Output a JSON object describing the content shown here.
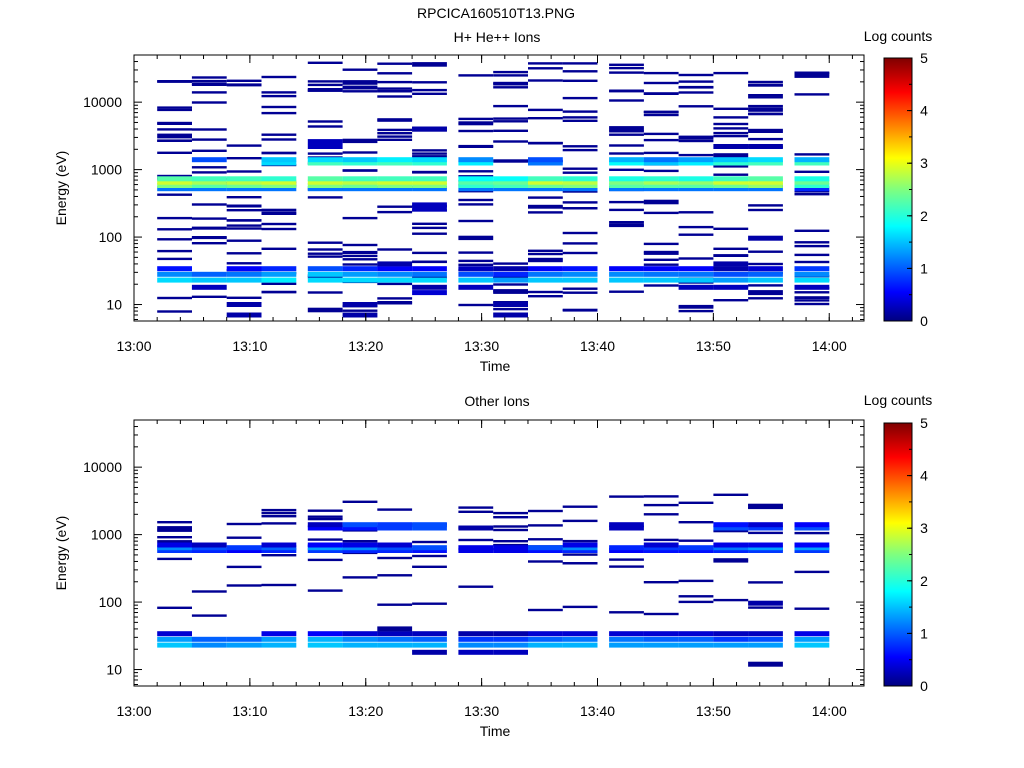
{
  "figure_title": "RPCICA160510T13.PNG",
  "chart_data": [
    {
      "type": "heatmap",
      "title": "H+ He++ Ions",
      "xlabel": "Time",
      "ylabel": "Energy (eV)",
      "x_ticks": [
        "13:00",
        "13:10",
        "13:20",
        "13:30",
        "13:40",
        "13:50",
        "14:00"
      ],
      "x_range": [
        "13:00",
        "14:03"
      ],
      "y_scale": "log",
      "y_range": [
        5.7,
        50000
      ],
      "y_ticks": [
        "10",
        "100",
        "1000",
        "10000"
      ],
      "colorbar": {
        "label": "Log counts",
        "range": [
          0,
          5
        ],
        "ticks": [
          "0",
          "1",
          "2",
          "3",
          "4",
          "5"
        ]
      },
      "time_bins": [
        "13:02",
        "13:05",
        "13:08",
        "13:11",
        "13:15",
        "13:18",
        "13:21",
        "13:24",
        "13:28",
        "13:31",
        "13:34",
        "13:37",
        "13:41",
        "13:44",
        "13:47",
        "13:50",
        "13:53",
        "13:57"
      ],
      "bands": [
        {
          "energy_eV": 520,
          "levels": [
            1.2,
            1.2,
            1.2,
            1.2,
            1.2,
            1.2,
            1.2,
            1.2,
            1.2,
            1.2,
            1.2,
            1.2,
            1.2,
            1.2,
            1.2,
            1.2,
            1.2,
            0.8
          ]
        },
        {
          "energy_eV": 580,
          "levels": [
            2.5,
            2.3,
            2.4,
            2.5,
            2.5,
            2.4,
            2.5,
            2.5,
            2.1,
            2.2,
            2.4,
            2.5,
            2.3,
            2.3,
            2.3,
            2.4,
            2.6,
            2.1
          ]
        },
        {
          "energy_eV": 650,
          "levels": [
            2.9,
            2.7,
            2.8,
            2.9,
            2.9,
            2.8,
            2.9,
            2.9,
            2.3,
            2.4,
            2.9,
            2.8,
            2.5,
            2.7,
            2.6,
            2.9,
            2.9,
            2.4
          ]
        },
        {
          "energy_eV": 730,
          "levels": [
            2.3,
            2.2,
            2.2,
            2.1,
            2.3,
            2.2,
            2.2,
            2.2,
            1.9,
            1.9,
            2.2,
            2.1,
            2.0,
            2.1,
            2.0,
            2.2,
            2.3,
            2.0
          ]
        },
        {
          "energy_eV": 1250,
          "levels": [
            0,
            0,
            0,
            1.7,
            2.2,
            2.1,
            2.2,
            2.1,
            1.8,
            0,
            1.2,
            0,
            1.9,
            1.6,
            1.8,
            2.1,
            2.2,
            2.2
          ]
        },
        {
          "energy_eV": 1400,
          "levels": [
            0,
            1.0,
            0,
            1.6,
            1.7,
            1.6,
            1.8,
            1.7,
            1.3,
            0,
            1.0,
            0,
            1.5,
            1.2,
            1.4,
            1.6,
            1.7,
            1.5
          ]
        },
        {
          "energy_eV": 23,
          "levels": [
            1.7,
            1.6,
            1.6,
            1.8,
            1.7,
            1.7,
            1.7,
            1.7,
            1.6,
            1.4,
            1.6,
            1.6,
            1.6,
            1.6,
            1.6,
            1.4,
            1.6,
            1.7
          ]
        },
        {
          "energy_eV": 28,
          "levels": [
            1.3,
            1.1,
            1.2,
            1.4,
            1.6,
            1.4,
            1.3,
            1.2,
            1.0,
            0.8,
            1.2,
            1.3,
            1.3,
            1.2,
            1.2,
            1.0,
            1.1,
            1.3
          ]
        },
        {
          "energy_eV": 34,
          "levels": [
            0.7,
            0,
            0.6,
            0.8,
            1.0,
            0.8,
            0.6,
            0.6,
            0.3,
            0.2,
            0.6,
            0.7,
            0.6,
            0.6,
            0.6,
            0.2,
            0.4,
            0.9
          ]
        },
        {
          "energy_eV": 40,
          "levels": [
            0,
            0,
            0,
            0,
            0,
            0,
            0.2,
            0,
            0,
            0,
            0,
            0,
            0,
            0,
            0,
            0.2,
            0,
            0
          ]
        },
        {
          "energy_eV": 18,
          "levels": [
            0,
            0.3,
            0,
            0,
            0,
            0,
            0,
            0.2,
            0.3,
            0,
            0,
            0,
            0,
            0,
            0.3,
            0.3,
            0,
            0.3
          ]
        },
        {
          "energy_eV": 15,
          "levels": [
            0,
            0,
            0,
            0,
            0,
            0,
            0,
            0.4,
            0,
            0,
            0,
            0,
            0,
            0,
            0,
            0,
            0.1,
            0
          ]
        },
        {
          "energy_eV": 10,
          "levels": [
            0,
            0,
            0.2,
            0,
            0,
            0.2,
            0,
            0,
            0,
            0.2,
            0,
            0,
            0,
            0,
            0,
            0,
            0,
            0
          ]
        },
        {
          "energy_eV": 7,
          "levels": [
            0,
            0,
            0.2,
            0,
            0,
            0.2,
            0,
            0,
            0,
            0.2,
            0,
            0,
            0,
            0,
            0,
            0,
            0,
            0
          ]
        },
        {
          "energy_eV": 2200,
          "levels": [
            0,
            0,
            0,
            0,
            0.3,
            0,
            0,
            0,
            0,
            0,
            0,
            0,
            0,
            0,
            0,
            0.2,
            0.2,
            0
          ]
        },
        {
          "energy_eV": 2600,
          "levels": [
            0,
            0,
            0,
            0,
            0.3,
            0,
            0,
            0,
            0,
            0,
            0,
            0,
            0,
            0,
            0,
            0,
            0,
            0
          ]
        },
        {
          "energy_eV": 4000,
          "levels": [
            0,
            0,
            0,
            0,
            0,
            0,
            0,
            0.2,
            0,
            0,
            0,
            0,
            0,
            0,
            0,
            0,
            0,
            0
          ]
        },
        {
          "energy_eV": 300,
          "levels": [
            0,
            0,
            0,
            0,
            0,
            0,
            0,
            0.3,
            0,
            0,
            0,
            0,
            0,
            0,
            0,
            0,
            0,
            0
          ]
        },
        {
          "energy_eV": 260,
          "levels": [
            0,
            0,
            0,
            0,
            0,
            0,
            0,
            0.3,
            0,
            0,
            0,
            0,
            0,
            0,
            0,
            0,
            0,
            0
          ]
        },
        {
          "energy_eV": 96,
          "levels": [
            0,
            0,
            0,
            0,
            0,
            0,
            0,
            0,
            0,
            0,
            0,
            0,
            0,
            0,
            0,
            0,
            0.2,
            0
          ]
        }
      ],
      "sparse_level": 0.1
    },
    {
      "type": "heatmap",
      "title": "Other Ions",
      "xlabel": "Time",
      "ylabel": "Energy (eV)",
      "x_ticks": [
        "13:00",
        "13:10",
        "13:20",
        "13:30",
        "13:40",
        "13:50",
        "14:00"
      ],
      "x_range": [
        "13:00",
        "14:03"
      ],
      "y_scale": "log",
      "y_range": [
        5.7,
        50000
      ],
      "y_ticks": [
        "10",
        "100",
        "1000",
        "10000"
      ],
      "colorbar": {
        "label": "Log counts",
        "range": [
          0,
          5
        ],
        "ticks": [
          "0",
          "1",
          "2",
          "3",
          "4",
          "5"
        ]
      },
      "time_bins": [
        "13:02",
        "13:05",
        "13:08",
        "13:11",
        "13:15",
        "13:18",
        "13:21",
        "13:24",
        "13:28",
        "13:31",
        "13:34",
        "13:37",
        "13:41",
        "13:44",
        "13:47",
        "13:50",
        "13:53",
        "13:57"
      ],
      "bands": [
        {
          "energy_eV": 580,
          "levels": [
            0.9,
            0.8,
            0.6,
            0.8,
            0.9,
            0.8,
            0.8,
            0.7,
            0.5,
            0.5,
            0.7,
            0.8,
            0.6,
            0.7,
            0.7,
            0.8,
            0.9,
            0.9
          ]
        },
        {
          "energy_eV": 640,
          "levels": [
            1.3,
            1.0,
            0.9,
            1.1,
            1.4,
            1.3,
            1.0,
            1.0,
            0.5,
            0.5,
            1.0,
            1.3,
            0.8,
            0.9,
            0.9,
            1.2,
            1.4,
            1.4
          ]
        },
        {
          "energy_eV": 700,
          "levels": [
            0.5,
            0.3,
            0,
            0.4,
            0.6,
            0.5,
            0.4,
            0,
            0,
            0,
            0,
            0.5,
            0,
            0.4,
            0,
            0.5,
            0.5,
            0.6
          ]
        },
        {
          "energy_eV": 1250,
          "levels": [
            0,
            0,
            0,
            0,
            0.6,
            0.7,
            0.9,
            1.0,
            0.2,
            0,
            0,
            0,
            0.3,
            0,
            0,
            1.0,
            0.9,
            1.0
          ]
        },
        {
          "energy_eV": 1400,
          "levels": [
            0,
            0,
            0,
            0,
            0.3,
            1.0,
            0.9,
            1.0,
            0,
            0,
            0,
            0,
            0.3,
            0,
            0,
            0.7,
            0.4,
            0.6
          ]
        },
        {
          "energy_eV": 23,
          "levels": [
            1.6,
            1.3,
            1.4,
            1.5,
            1.6,
            1.5,
            1.5,
            1.5,
            1.3,
            1.3,
            1.5,
            1.5,
            1.4,
            1.4,
            1.4,
            1.4,
            1.4,
            1.6
          ]
        },
        {
          "energy_eV": 28,
          "levels": [
            1.4,
            1.1,
            1.1,
            1.4,
            1.5,
            1.3,
            1.2,
            1.1,
            0.9,
            0.9,
            1.1,
            1.2,
            1.2,
            1.1,
            1.1,
            0.9,
            1.0,
            1.4
          ]
        },
        {
          "energy_eV": 34,
          "levels": [
            0.4,
            0,
            0,
            0.5,
            0.6,
            0.4,
            0.3,
            0.3,
            0.2,
            0.2,
            0.4,
            0.4,
            0.4,
            0.4,
            0.4,
            0.3,
            0.3,
            0.5
          ]
        },
        {
          "energy_eV": 40,
          "levels": [
            0,
            0,
            0,
            0,
            0,
            0,
            0.1,
            0,
            0,
            0,
            0,
            0,
            0,
            0,
            0,
            0,
            0,
            0
          ]
        },
        {
          "energy_eV": 18,
          "levels": [
            0,
            0,
            0,
            0,
            0,
            0,
            0,
            0.2,
            0.3,
            0.3,
            0,
            0,
            0,
            0,
            0,
            0,
            0,
            0
          ]
        },
        {
          "energy_eV": 12,
          "levels": [
            0,
            0,
            0,
            0,
            0,
            0,
            0,
            0,
            0,
            0,
            0,
            0,
            0,
            0,
            0,
            0,
            0.1,
            0
          ]
        },
        {
          "energy_eV": 2600,
          "levels": [
            0,
            0,
            0,
            0,
            0,
            0,
            0,
            0,
            0,
            0,
            0,
            0,
            0,
            0,
            0,
            0,
            0.1,
            0
          ]
        },
        {
          "energy_eV": 96,
          "levels": [
            0,
            0,
            0,
            0,
            0,
            0,
            0,
            0,
            0,
            0,
            0,
            0,
            0,
            0,
            0,
            0,
            0.2,
            0
          ]
        }
      ],
      "sparse_level": 0.1
    }
  ]
}
